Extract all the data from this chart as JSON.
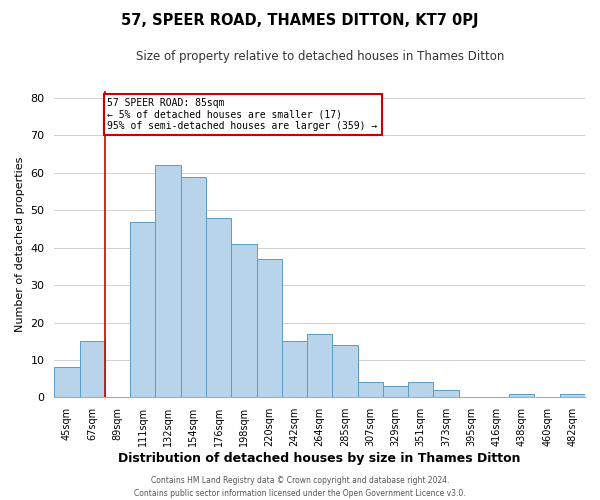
{
  "title": "57, SPEER ROAD, THAMES DITTON, KT7 0PJ",
  "subtitle": "Size of property relative to detached houses in Thames Ditton",
  "xlabel": "Distribution of detached houses by size in Thames Ditton",
  "ylabel": "Number of detached properties",
  "bin_labels": [
    "45sqm",
    "67sqm",
    "89sqm",
    "111sqm",
    "132sqm",
    "154sqm",
    "176sqm",
    "198sqm",
    "220sqm",
    "242sqm",
    "264sqm",
    "285sqm",
    "307sqm",
    "329sqm",
    "351sqm",
    "373sqm",
    "395sqm",
    "416sqm",
    "438sqm",
    "460sqm",
    "482sqm"
  ],
  "bar_heights": [
    8,
    15,
    0,
    47,
    62,
    59,
    48,
    41,
    37,
    15,
    17,
    14,
    4,
    3,
    4,
    2,
    0,
    0,
    1,
    0,
    1
  ],
  "bar_color": "#b8d4ea",
  "bar_edge_color": "#5a9cc5",
  "vline_x_idx": 2,
  "vline_color": "#cc0000",
  "annotation_title": "57 SPEER ROAD: 85sqm",
  "annotation_line1": "← 5% of detached houses are smaller (17)",
  "annotation_line2": "95% of semi-detached houses are larger (359) →",
  "annotation_box_color": "#ffffff",
  "annotation_box_edge": "#cc0000",
  "ylim": [
    0,
    82
  ],
  "yticks": [
    0,
    10,
    20,
    30,
    40,
    50,
    60,
    70,
    80
  ],
  "footer1": "Contains HM Land Registry data © Crown copyright and database right 2024.",
  "footer2": "Contains public sector information licensed under the Open Government Licence v3.0."
}
